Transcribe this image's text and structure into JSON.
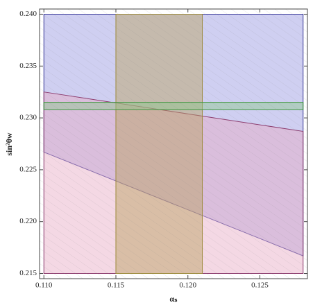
{
  "chart_data": {
    "type": "region",
    "x_label": "αₛ",
    "y_label": "sin²θw",
    "xlim": [
      0.1097,
      0.1283
    ],
    "ylim": [
      0.2145,
      0.2405
    ],
    "xticks": [
      {
        "value": 0.11,
        "label": "0.110"
      },
      0.115,
      {
        "value": 0.12,
        "label": "0.120"
      },
      0.125
    ],
    "yticks": [
      {
        "value": 0.215,
        "label": "0.215"
      },
      {
        "value": 0.22,
        "label": "0.220"
      },
      0.225,
      {
        "value": 0.23,
        "label": "0.230"
      },
      0.235,
      {
        "value": 0.24,
        "label": "0.240"
      }
    ],
    "series": [
      {
        "color": "#9494e0",
        "edge": "#3c3c9a",
        "x": [
          0.11,
          0.128
        ],
        "lower": [
          0.2267,
          0.2167
        ],
        "upper": [
          0.24,
          0.24
        ]
      },
      {
        "color": "#e6a8c4",
        "edge": "#8c3c6e",
        "x": [
          0.11,
          0.128
        ],
        "lower": [
          0.215,
          0.215
        ],
        "upper": [
          0.2325,
          0.2287
        ]
      },
      {
        "color": "#b8a05a",
        "edge": "#9c8a3a",
        "x": [
          0.115,
          0.121
        ],
        "lower": [
          0.215,
          0.215
        ],
        "upper": [
          0.24,
          0.24
        ]
      },
      {
        "color": "#8cc88c",
        "edge": "#3c963c",
        "x": [
          0.11,
          0.128
        ],
        "lower": [
          0.2308,
          0.2308
        ],
        "upper": [
          0.2315,
          0.2315
        ]
      }
    ]
  }
}
